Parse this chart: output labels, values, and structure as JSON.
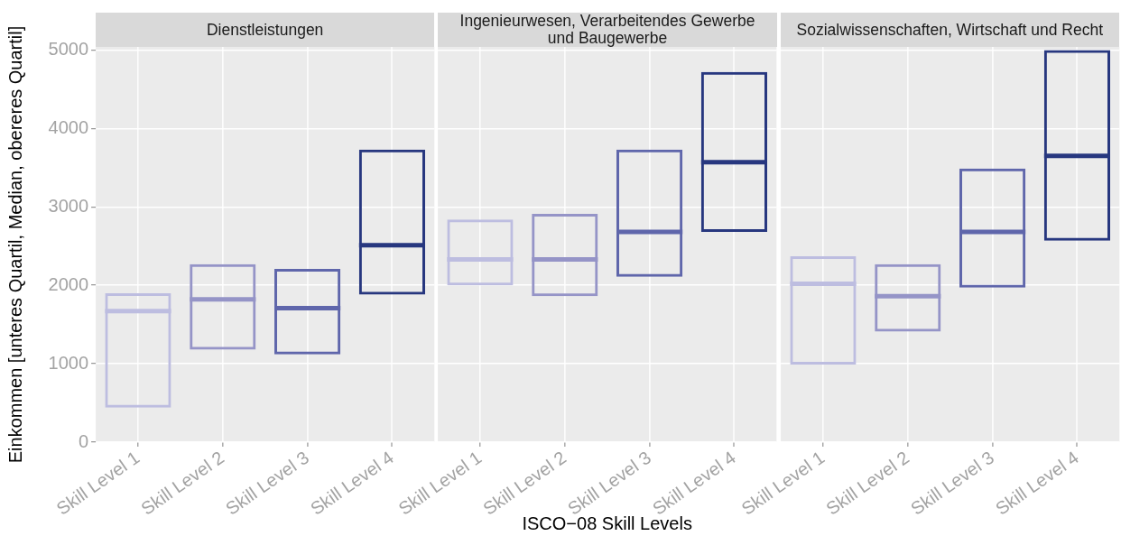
{
  "chart_data": [
    {
      "type": "box",
      "title": "Dienstleistungen",
      "ylabel": "Einkommen [unteres Quartil, Median, obereres Quartil]",
      "categories": [
        "Skill Level 1",
        "Skill Level 2",
        "Skill Level 3",
        "Skill Level 4"
      ],
      "colors": [
        "#bdbde0",
        "#9594c7",
        "#5f66ab",
        "#27377f"
      ],
      "boxes": [
        {
          "low": 440,
          "q1": 440,
          "median": 1670,
          "q3": 1900,
          "high": 1900
        },
        {
          "low": 1180,
          "q1": 1180,
          "median": 1820,
          "q3": 2270,
          "high": 2270
        },
        {
          "low": 1120,
          "q1": 1120,
          "median": 1710,
          "q3": 2210,
          "high": 2210
        },
        {
          "low": 1880,
          "q1": 1880,
          "median": 2510,
          "q3": 3730,
          "high": 3730
        }
      ],
      "ylim": [
        0,
        5040
      ],
      "yticks": [
        0,
        1000,
        2000,
        3000,
        4000,
        5000
      ],
      "grid": true
    },
    {
      "type": "box",
      "title": "Ingenieurwesen, Verarbeitendes Gewerbe\nund Baugewerbe",
      "xlabel": "ISCO−08 Skill Levels",
      "categories": [
        "Skill Level 1",
        "Skill Level 2",
        "Skill Level 3",
        "Skill Level 4"
      ],
      "colors": [
        "#bdbde0",
        "#9594c7",
        "#5f66ab",
        "#27377f"
      ],
      "boxes": [
        {
          "low": 2000,
          "q1": 2000,
          "median": 2330,
          "q3": 2840,
          "high": 2840
        },
        {
          "low": 1860,
          "q1": 1860,
          "median": 2330,
          "q3": 2910,
          "high": 2910
        },
        {
          "low": 2110,
          "q1": 2110,
          "median": 2680,
          "q3": 3730,
          "high": 3730
        },
        {
          "low": 2680,
          "q1": 2680,
          "median": 3570,
          "q3": 4720,
          "high": 4720
        }
      ],
      "ylim": [
        0,
        5040
      ],
      "yticks": [
        0,
        1000,
        2000,
        3000,
        4000,
        5000
      ],
      "grid": true,
      "tick_labels": "x"
    },
    {
      "type": "box",
      "title": "Sozialwissenschaften, Wirtschaft und Recht",
      "categories": [
        "Skill Level 1",
        "Skill Level 2",
        "Skill Level 3",
        "Skill Level 4"
      ],
      "colors": [
        "#bdbde0",
        "#9594c7",
        "#5f66ab",
        "#27377f"
      ],
      "boxes": [
        {
          "low": 990,
          "q1": 990,
          "median": 2020,
          "q3": 2370,
          "high": 2370
        },
        {
          "low": 1410,
          "q1": 1410,
          "median": 1860,
          "q3": 2270,
          "high": 2270
        },
        {
          "low": 1970,
          "q1": 1970,
          "median": 2680,
          "q3": 3490,
          "high": 3490
        },
        {
          "low": 2570,
          "q1": 2570,
          "median": 3650,
          "q3": 5000,
          "high": 5000
        }
      ],
      "ylim": [
        0,
        5040
      ],
      "yticks": [
        0,
        1000,
        2000,
        3000,
        4000,
        5000
      ],
      "grid": true,
      "tick_labels": "x"
    }
  ]
}
